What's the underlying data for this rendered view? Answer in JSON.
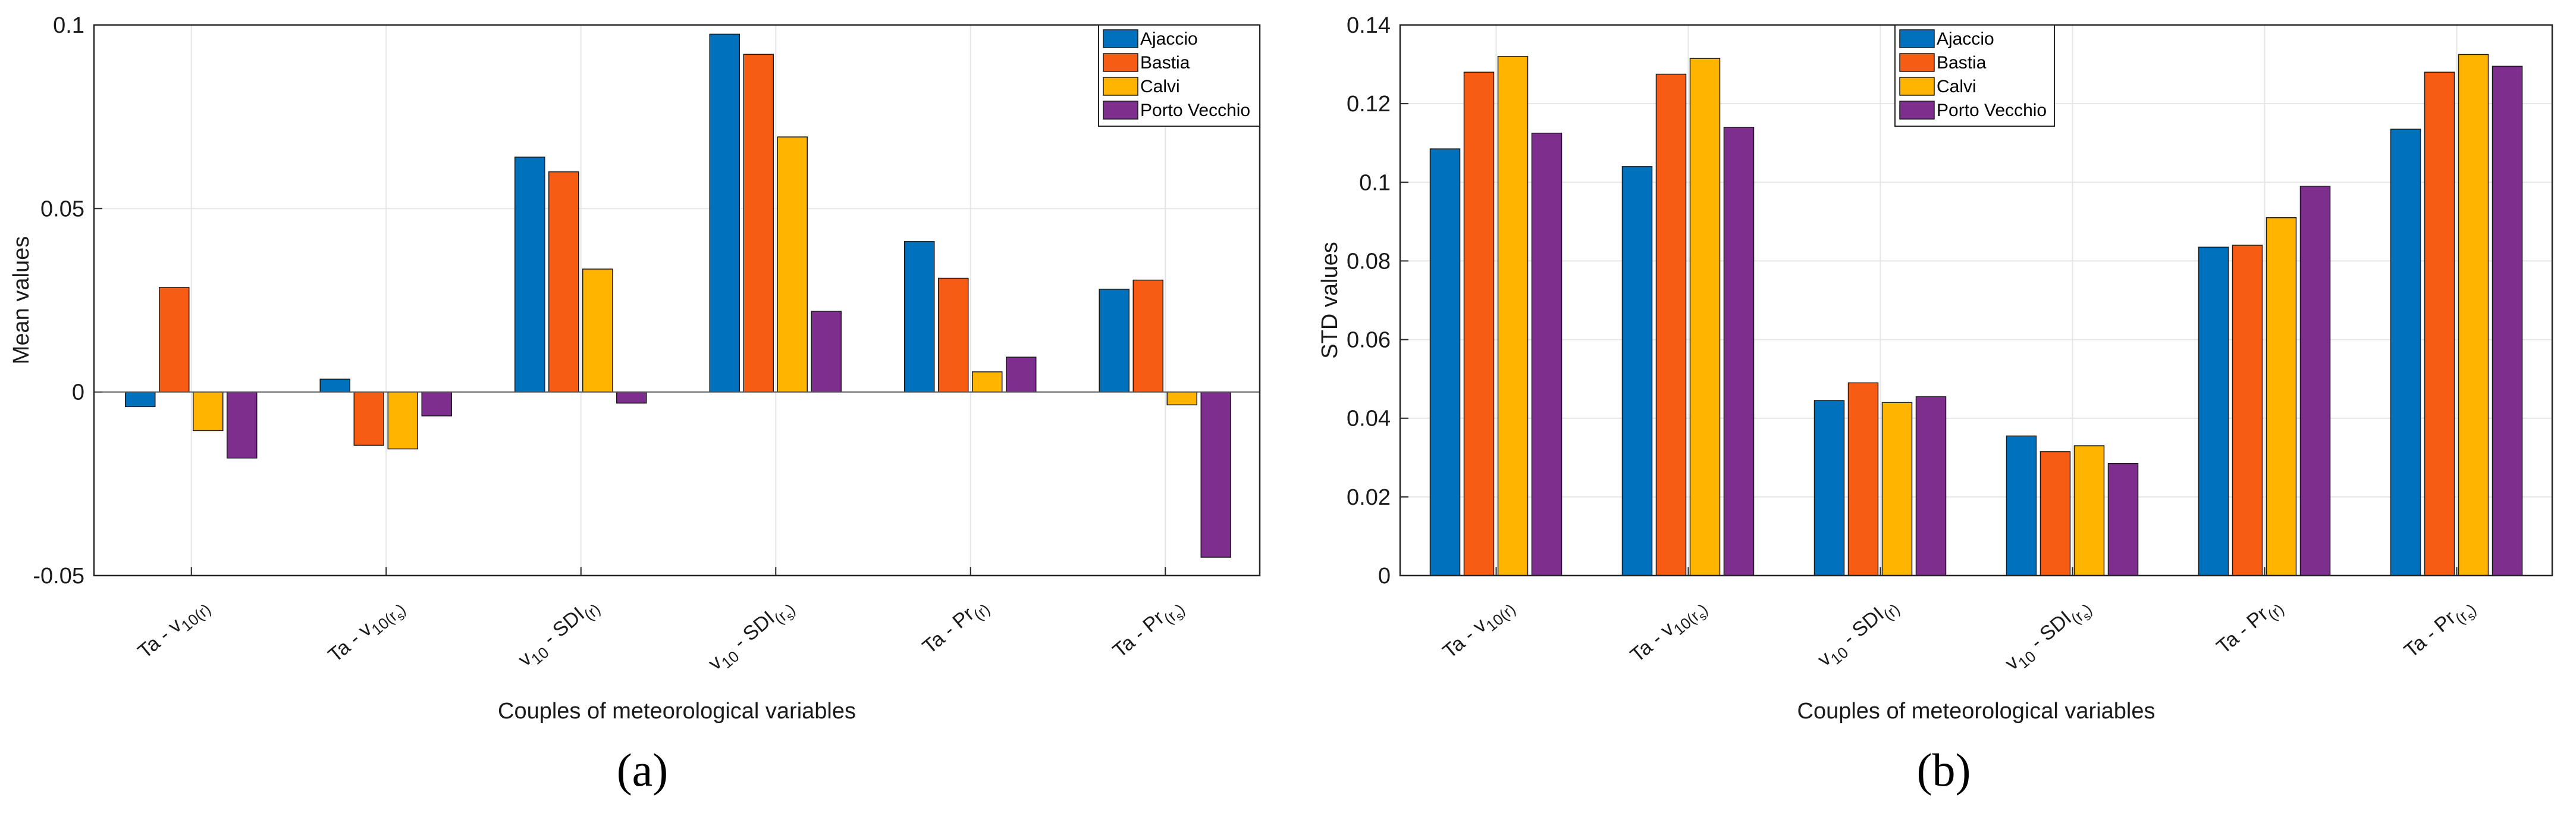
{
  "chart_data": [
    {
      "id": "a",
      "type": "bar",
      "panel_label": "(a)",
      "xlabel": "Couples of meteorological variables",
      "ylabel": "Mean values",
      "ylim": [
        -0.05,
        0.1
      ],
      "yticks": [
        "-0.05",
        "0",
        "0.05",
        "0.1"
      ],
      "grid": true,
      "legend_position": "top-right",
      "categories": [
        {
          "base": "Ta - v",
          "sub": "10(r)",
          "subsub": ""
        },
        {
          "base": "Ta - v",
          "sub": "10(r",
          "subsub": "s",
          "close": ")"
        },
        {
          "base": "v",
          "sub": "10",
          "mid": " - SDI",
          "sub2": "(r)"
        },
        {
          "base": "v",
          "sub": "10",
          "mid": " - SDI",
          "sub2": "(r",
          "subsub": "s",
          "close": ")"
        },
        {
          "base": "Ta - Pr",
          "sub": "(r)",
          "subsub": ""
        },
        {
          "base": "Ta - Pr",
          "sub": "(r",
          "subsub": "s",
          "close": ")"
        }
      ],
      "series": [
        {
          "name": "Ajaccio",
          "color": "#0072BD",
          "values": [
            -0.004,
            0.0035,
            0.064,
            0.0975,
            0.041,
            0.028
          ]
        },
        {
          "name": "Bastia",
          "color": "#F75C14",
          "values": [
            0.0285,
            -0.0145,
            0.06,
            0.092,
            0.031,
            0.0305
          ]
        },
        {
          "name": "Calvi",
          "color": "#FFB400",
          "values": [
            -0.0105,
            -0.0155,
            0.0335,
            0.0695,
            0.0055,
            -0.0035
          ]
        },
        {
          "name": "Porto Vecchio",
          "color": "#7E2F8E",
          "values": [
            -0.018,
            -0.0065,
            -0.003,
            0.022,
            0.0095,
            -0.045
          ]
        }
      ]
    },
    {
      "id": "b",
      "type": "bar",
      "panel_label": "(b)",
      "xlabel": "Couples of meteorological variables",
      "ylabel": "STD values",
      "ylim": [
        0,
        0.14
      ],
      "yticks": [
        "0",
        "0.02",
        "0.04",
        "0.06",
        "0.08",
        "0.1",
        "0.12",
        "0.14"
      ],
      "grid": true,
      "legend_position": "top-center",
      "categories": [
        {
          "base": "Ta - v",
          "sub": "10(r)",
          "subsub": ""
        },
        {
          "base": "Ta - v",
          "sub": "10(r",
          "subsub": "s",
          "close": ")"
        },
        {
          "base": "v",
          "sub": "10",
          "mid": " - SDI",
          "sub2": "(r)"
        },
        {
          "base": "v",
          "sub": "10",
          "mid": " - SDI",
          "sub2": "(r",
          "subsub": "s",
          "close": ")"
        },
        {
          "base": "Ta - Pr",
          "sub": "(r)",
          "subsub": ""
        },
        {
          "base": "Ta - Pr",
          "sub": "(r",
          "subsub": "s",
          "close": ")"
        }
      ],
      "series": [
        {
          "name": "Ajaccio",
          "color": "#0072BD",
          "values": [
            0.1085,
            0.104,
            0.0445,
            0.0355,
            0.0835,
            0.1135
          ]
        },
        {
          "name": "Bastia",
          "color": "#F75C14",
          "values": [
            0.128,
            0.1275,
            0.049,
            0.0315,
            0.084,
            0.128
          ]
        },
        {
          "name": "Calvi",
          "color": "#FFB400",
          "values": [
            0.132,
            0.1315,
            0.044,
            0.033,
            0.091,
            0.1325
          ]
        },
        {
          "name": "Porto Vecchio",
          "color": "#7E2F8E",
          "values": [
            0.1125,
            0.114,
            0.0455,
            0.0285,
            0.099,
            0.1295
          ]
        }
      ]
    }
  ]
}
